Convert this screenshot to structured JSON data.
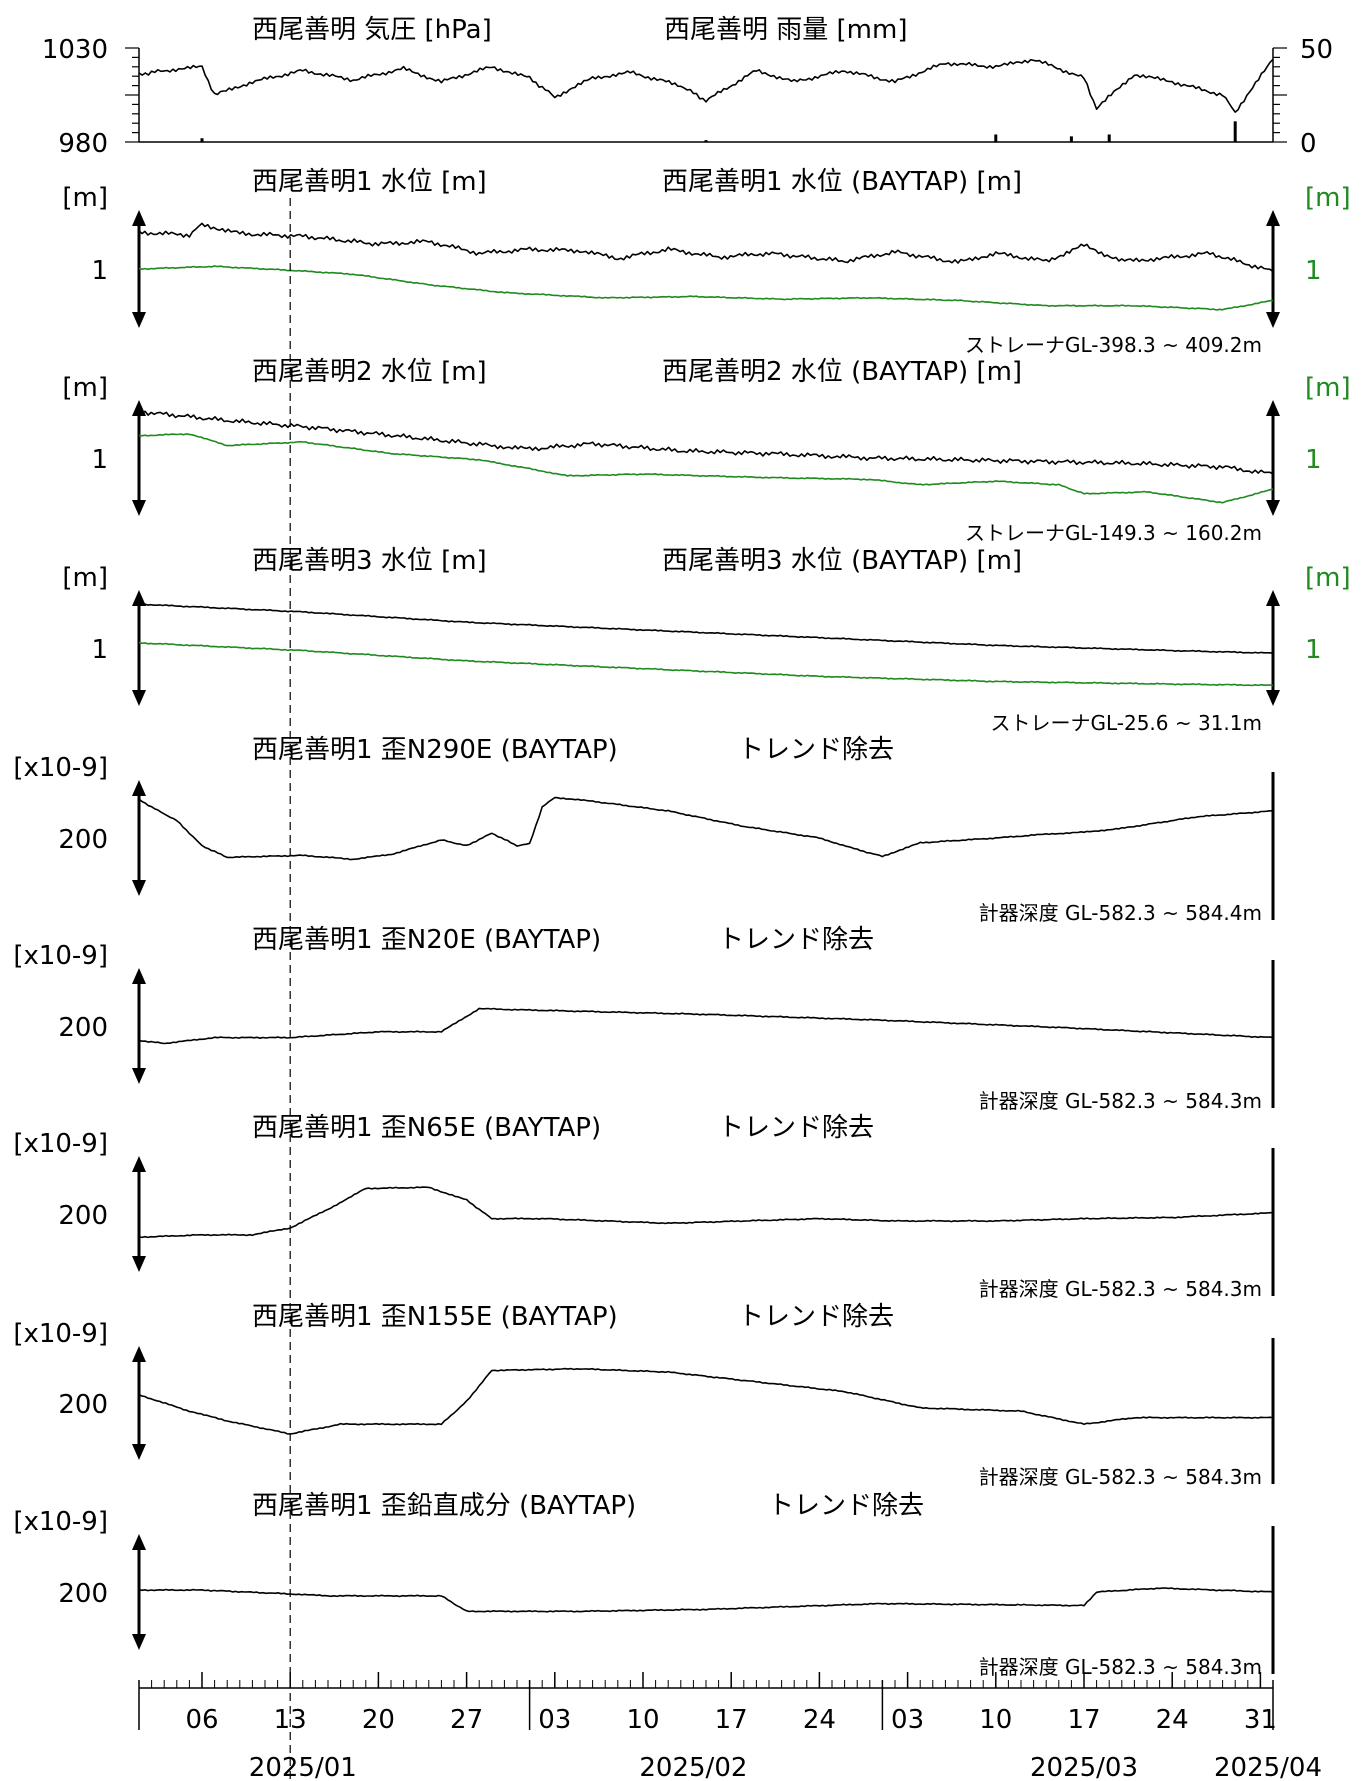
{
  "chart_data": {
    "type": "line",
    "x_range": [
      "2025-01-01",
      "2025-04-01"
    ],
    "event_marker": {
      "date": "2025-01-13",
      "style": "dashed"
    },
    "x_axis": {
      "day_ticks": [
        {
          "date": "2025-01-06",
          "label": "06"
        },
        {
          "date": "2025-01-13",
          "label": "13"
        },
        {
          "date": "2025-01-20",
          "label": "20"
        },
        {
          "date": "2025-01-27",
          "label": "27"
        },
        {
          "date": "2025-02-03",
          "label": "03"
        },
        {
          "date": "2025-02-10",
          "label": "10"
        },
        {
          "date": "2025-02-17",
          "label": "17"
        },
        {
          "date": "2025-02-24",
          "label": "24"
        },
        {
          "date": "2025-03-03",
          "label": "03"
        },
        {
          "date": "2025-03-10",
          "label": "10"
        },
        {
          "date": "2025-03-17",
          "label": "17"
        },
        {
          "date": "2025-03-24",
          "label": "24"
        },
        {
          "date": "2025-03-31",
          "label": "31"
        }
      ],
      "month_labels": [
        {
          "date": "2025-01-14",
          "label": "2025/01"
        },
        {
          "date": "2025-02-14",
          "label": "2025/02"
        },
        {
          "date": "2025-03-17",
          "label": "2025/03"
        },
        {
          "date": "2025-04-01",
          "label": "2025/04"
        }
      ],
      "month_boundaries": [
        "2025-02-01",
        "2025-03-01"
      ]
    },
    "panels": [
      {
        "kind": "weather",
        "titles": [
          "西尾善明 気圧 [hPa]",
          "西尾善明 雨量 [mm]"
        ],
        "left_axis": {
          "min": 980,
          "max": 1030,
          "ticks": [
            "980",
            "1030"
          ]
        },
        "right_axis": {
          "min": 0,
          "max": 50,
          "ticks": [
            "0",
            "50"
          ]
        },
        "series": [
          {
            "color": "#000000",
            "x": [
              "01-01",
              "01-03",
              "01-06",
              "01-07",
              "01-10",
              "01-14",
              "01-18",
              "01-22",
              "01-25",
              "01-29",
              "02-01",
              "02-03",
              "02-06",
              "02-09",
              "02-13",
              "02-15",
              "02-19",
              "02-22",
              "02-26",
              "03-02",
              "03-06",
              "03-10",
              "03-13",
              "03-17",
              "03-18",
              "03-21",
              "03-24",
              "03-28",
              "03-29",
              "04-01"
            ],
            "values": [
              1016,
              1018,
              1020,
              1005,
              1012,
              1018,
              1013,
              1019,
              1012,
              1020,
              1014,
              1004,
              1014,
              1017,
              1010,
              1002,
              1018,
              1012,
              1018,
              1012,
              1022,
              1020,
              1024,
              1014,
              998,
              1016,
              1012,
              1005,
              996,
              1024
            ]
          },
          {
            "color": "#000000",
            "x": [
              "01-06",
              "02-15",
              "03-10",
              "03-16",
              "03-19",
              "03-29"
            ],
            "values": [
              2,
              1,
              4,
              3,
              4,
              11
            ]
          }
        ]
      },
      {
        "kind": "water",
        "titles": [
          "西尾善明1 水位 [m]",
          "西尾善明1 水位 (BAYTAP) [m]"
        ],
        "left_unit": "[m]",
        "right_unit": "[m]",
        "tick_label": "1",
        "note": "ストレーナGL-398.3 ~ 409.2m",
        "series": [
          {
            "color": "#000000",
            "x": [
              "01-01",
              "01-05",
              "01-06",
              "01-09",
              "01-14",
              "01-20",
              "01-24",
              "01-28",
              "02-01",
              "02-05",
              "02-08",
              "02-12",
              "02-16",
              "02-20",
              "02-26",
              "03-02",
              "03-07",
              "03-10",
              "03-14",
              "03-17",
              "03-20",
              "03-23",
              "03-27",
              "04-01"
            ],
            "values": [
              1.28,
              1.26,
              1.34,
              1.27,
              1.25,
              1.19,
              1.21,
              1.12,
              1.15,
              1.14,
              1.08,
              1.15,
              1.09,
              1.12,
              1.06,
              1.13,
              1.05,
              1.12,
              1.06,
              1.18,
              1.06,
              1.08,
              1.12,
              0.98
            ]
          },
          {
            "color": "#1f8a1f",
            "x": [
              "01-01",
              "01-07",
              "01-13",
              "01-18",
              "01-24",
              "01-30",
              "02-07",
              "02-14",
              "02-21",
              "02-28",
              "03-07",
              "03-14",
              "03-21",
              "03-28",
              "04-01"
            ],
            "values": [
              1.0,
              1.02,
              0.99,
              0.96,
              0.88,
              0.82,
              0.78,
              0.79,
              0.77,
              0.78,
              0.76,
              0.72,
              0.72,
              0.69,
              0.76
            ]
          }
        ]
      },
      {
        "kind": "water",
        "titles": [
          "西尾善明2 水位 [m]",
          "西尾善明2 水位 (BAYTAP) [m]"
        ],
        "left_unit": "[m]",
        "right_unit": "[m]",
        "tick_label": "1",
        "note": "ストレーナGL-149.3 ~ 160.2m",
        "series": [
          {
            "color": "#000000",
            "x": [
              "01-01",
              "01-08",
              "01-15",
              "01-22",
              "01-29",
              "02-01",
              "02-06",
              "02-13",
              "02-20",
              "02-28",
              "03-07",
              "03-14",
              "03-21",
              "03-28",
              "04-01"
            ],
            "values": [
              1.52,
              1.42,
              1.34,
              1.24,
              1.14,
              1.1,
              1.16,
              1.08,
              1.05,
              1.0,
              0.98,
              0.96,
              0.94,
              0.9,
              0.82
            ]
          },
          {
            "color": "#1f8a1f",
            "x": [
              "01-01",
              "01-05",
              "01-08",
              "01-14",
              "01-21",
              "01-28",
              "02-01",
              "02-04",
              "02-10",
              "02-20",
              "02-28",
              "03-04",
              "03-10",
              "03-15",
              "03-17",
              "03-22",
              "03-28",
              "04-01"
            ],
            "values": [
              1.25,
              1.27,
              1.14,
              1.18,
              1.05,
              0.98,
              0.88,
              0.8,
              0.82,
              0.78,
              0.76,
              0.7,
              0.74,
              0.7,
              0.6,
              0.62,
              0.5,
              0.65
            ]
          }
        ]
      },
      {
        "kind": "water",
        "titles": [
          "西尾善明3 水位 [m]",
          "西尾善明3 水位 (BAYTAP) [m]"
        ],
        "left_unit": "[m]",
        "right_unit": "[m]",
        "tick_label": "1",
        "note": "ストレーナGL-25.6 ~ 31.1m",
        "series": [
          {
            "color": "#000000",
            "x": [
              "01-01",
              "01-14",
              "01-27",
              "02-10",
              "02-24",
              "03-10",
              "03-24",
              "04-01"
            ],
            "values": [
              1.34,
              1.28,
              1.2,
              1.14,
              1.08,
              1.02,
              0.98,
              0.96
            ]
          },
          {
            "color": "#1f8a1f",
            "x": [
              "01-01",
              "01-14",
              "01-27",
              "02-10",
              "02-24",
              "03-10",
              "03-24",
              "04-01"
            ],
            "values": [
              1.04,
              0.98,
              0.9,
              0.84,
              0.78,
              0.74,
              0.72,
              0.71
            ]
          }
        ]
      },
      {
        "kind": "strain",
        "titles": [
          "西尾善明1 歪N290E (BAYTAP)",
          "トレンド除去"
        ],
        "left_unit": "[x10-9]",
        "tick_label": "200",
        "note": "計器深度 GL-582.3 ~ 584.4m",
        "series": [
          {
            "color": "#000000",
            "x": [
              "01-01",
              "01-02",
              "01-04",
              "01-06",
              "01-08",
              "01-14",
              "01-18",
              "01-21",
              "01-25",
              "01-27",
              "01-29",
              "01-31",
              "02-01",
              "02-02",
              "02-03",
              "02-06",
              "02-12",
              "02-18",
              "02-24",
              "02-27",
              "03-01",
              "03-04",
              "03-10",
              "03-14",
              "03-17",
              "03-20",
              "03-26",
              "04-01"
            ],
            "values": [
              270,
              262,
              248,
              222,
              210,
              212,
              208,
              213,
              228,
              222,
              235,
              222,
              224,
              262,
              272,
              268,
              258,
              242,
              230,
              218,
              211,
              225,
              230,
              234,
              236,
              240,
              252,
              258
            ]
          }
        ]
      },
      {
        "kind": "strain",
        "titles": [
          "西尾善明1 歪N20E (BAYTAP)",
          "トレンド除去"
        ],
        "left_unit": "[x10-9]",
        "tick_label": "200",
        "note": "計器深度 GL-582.3 ~ 584.3m",
        "series": [
          {
            "color": "#000000",
            "x": [
              "01-01",
              "01-03",
              "01-07",
              "01-13",
              "01-20",
              "01-25",
              "01-28",
              "02-01",
              "02-15",
              "03-01",
              "03-15",
              "04-01"
            ],
            "values": [
              200,
              198,
              202,
              202,
              206,
              206,
              222,
              221,
              218,
              214,
              209,
              202
            ]
          }
        ]
      },
      {
        "kind": "strain",
        "titles": [
          "西尾善明1 歪N65E (BAYTAP)",
          "トレンド除去"
        ],
        "left_unit": "[x10-9]",
        "tick_label": "200",
        "note": "計器深度 GL-582.3 ~ 584.3m",
        "series": [
          {
            "color": "#000000",
            "x": [
              "01-01",
              "01-06",
              "01-10",
              "01-13",
              "01-16",
              "01-19",
              "01-24",
              "01-27",
              "01-29",
              "02-02",
              "02-12",
              "02-18",
              "02-24",
              "03-02",
              "03-10",
              "03-17",
              "03-24",
              "04-01"
            ],
            "values": [
              190,
              192,
              192,
              198,
              214,
              232,
              233,
              222,
              206,
              206,
              202,
              204,
              206,
              204,
              204,
              206,
              207,
              211
            ]
          }
        ]
      },
      {
        "kind": "strain",
        "titles": [
          "西尾善明1 歪N155E (BAYTAP)",
          "トレンド除去"
        ],
        "left_unit": "[x10-9]",
        "tick_label": "200",
        "note": "計器深度 GL-582.3 ~ 584.3m",
        "series": [
          {
            "color": "#000000",
            "x": [
              "01-01",
              "01-05",
              "01-08",
              "01-13",
              "01-17",
              "01-25",
              "01-27",
              "01-29",
              "02-05",
              "02-12",
              "02-19",
              "02-26",
              "03-04",
              "03-12",
              "03-17",
              "03-21",
              "03-26",
              "04-01"
            ],
            "values": [
              210,
              200,
              194,
              186,
              192,
              192,
              206,
              225,
              226,
              224,
              218,
              212,
              202,
              200,
              192,
              196,
              196,
              196
            ]
          }
        ]
      },
      {
        "kind": "strain",
        "titles": [
          "西尾善明1 歪鉛直成分 (BAYTAP)",
          "トレンド除去"
        ],
        "left_unit": "[x10-9]",
        "tick_label": "200",
        "note": "計器深度 GL-582.3 ~ 584.3m",
        "series": [
          {
            "color": "#000000",
            "x": [
              "01-01",
              "01-06",
              "01-13",
              "01-16",
              "01-25",
              "01-27",
              "02-05",
              "02-15",
              "03-01",
              "03-17",
              "03-18",
              "03-23",
              "04-01"
            ],
            "values": [
              201,
              201,
              199,
              198,
              198,
              190,
              190,
              191,
              194,
              193,
              200,
              202,
              200
            ]
          }
        ]
      }
    ]
  }
}
